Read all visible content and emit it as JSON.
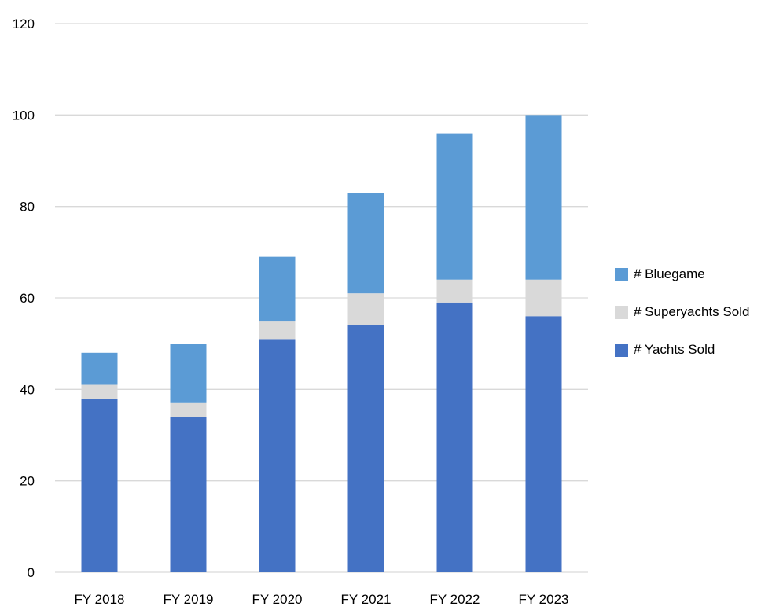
{
  "chart_data": {
    "type": "bar",
    "stacked": true,
    "title": "",
    "xlabel": "",
    "ylabel": "",
    "categories": [
      "FY 2018",
      "FY 2019",
      "FY 2020",
      "FY 2021",
      "FY 2022",
      "FY 2023"
    ],
    "series": [
      {
        "name": "# Yachts Sold",
        "color": "#4472C4",
        "values": [
          38,
          34,
          51,
          54,
          59,
          56
        ]
      },
      {
        "name": "# Superyachts Sold",
        "color": "#D9D9D9",
        "values": [
          3,
          3,
          4,
          7,
          5,
          8
        ]
      },
      {
        "name": "# Bluegame",
        "color": "#5B9BD5",
        "values": [
          7,
          13,
          14,
          22,
          32,
          36
        ]
      }
    ],
    "ylim": [
      0,
      120
    ],
    "yticks": [
      0,
      20,
      40,
      60,
      80,
      100,
      120
    ],
    "grid": true,
    "gridline_color": "#D9D9D9",
    "legend_position": "right",
    "legend_order": [
      "# Bluegame",
      "# Superyachts Sold",
      "# Yachts Sold"
    ]
  }
}
